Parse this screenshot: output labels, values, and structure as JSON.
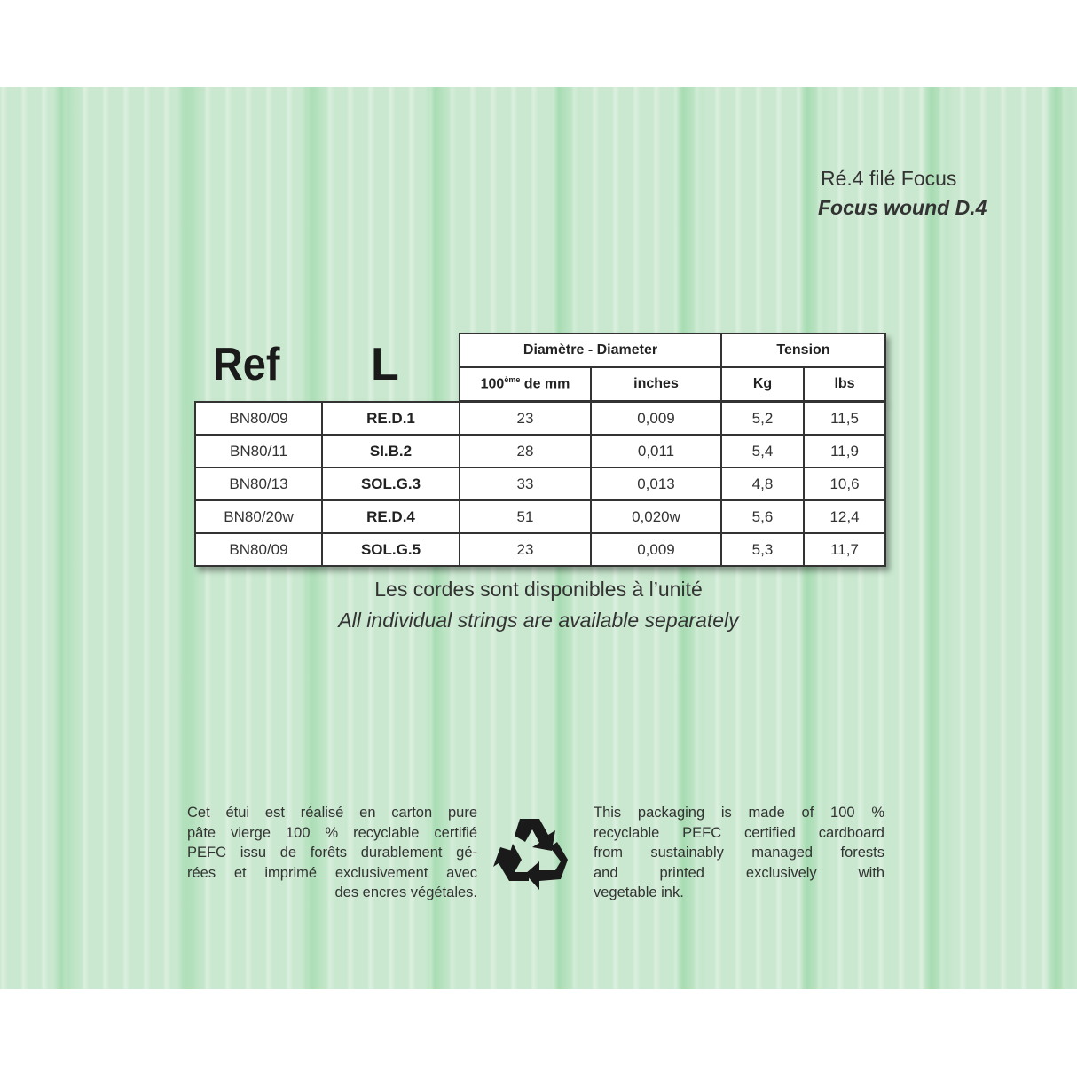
{
  "header": {
    "title_fr": "Ré.4 filé Focus",
    "title_en": "Focus wound D.4"
  },
  "table": {
    "col_ref": "Ref",
    "col_l": "L",
    "group_diameter": "Diamètre - Diameter",
    "group_tension": "Tension",
    "sub_mm": "100",
    "sub_mm_sup": "ème",
    "sub_mm_suffix": " de mm",
    "sub_inches": "inches",
    "sub_kg": "Kg",
    "sub_lbs": "lbs",
    "rows": [
      {
        "ref": "BN80/09",
        "l": "RE.D.1",
        "mm": "23",
        "inches": "0,009",
        "kg": "5,2",
        "lbs": "11,5"
      },
      {
        "ref": "BN80/11",
        "l": "SI.B.2",
        "mm": "28",
        "inches": "0,011",
        "kg": "5,4",
        "lbs": "11,9"
      },
      {
        "ref": "BN80/13",
        "l": "SOL.G.3",
        "mm": "33",
        "inches": "0,013",
        "kg": "4,8",
        "lbs": "10,6"
      },
      {
        "ref": "BN80/20w",
        "l": "RE.D.4",
        "mm": "51",
        "inches": "0,020w",
        "kg": "5,6",
        "lbs": "12,4"
      },
      {
        "ref": "BN80/09",
        "l": "SOL.G.5",
        "mm": "23",
        "inches": "0,009",
        "kg": "5,3",
        "lbs": "11,7"
      }
    ]
  },
  "availability": {
    "fr": "Les cordes sont disponibles à l’unité",
    "en": "All individual strings are available separately"
  },
  "recycling": {
    "icon": "recycle-icon",
    "fr_lines": [
      "Cet étui est réalisé en carton pure",
      "pâte vierge 100 % recyclable certifié",
      "PEFC issu de forêts durablement gé-",
      "rées et imprimé exclusivement avec",
      "des encres végétales."
    ],
    "en_lines": [
      "This packaging is made of 100 %",
      "recyclable PEFC certified cardboard",
      "from sustainably managed forests",
      "and printed exclusively with",
      "vegetable ink."
    ]
  },
  "colors": {
    "background_green": "#c9e8cf",
    "wood_stripe": "#8cd29b",
    "text": "#222222"
  }
}
